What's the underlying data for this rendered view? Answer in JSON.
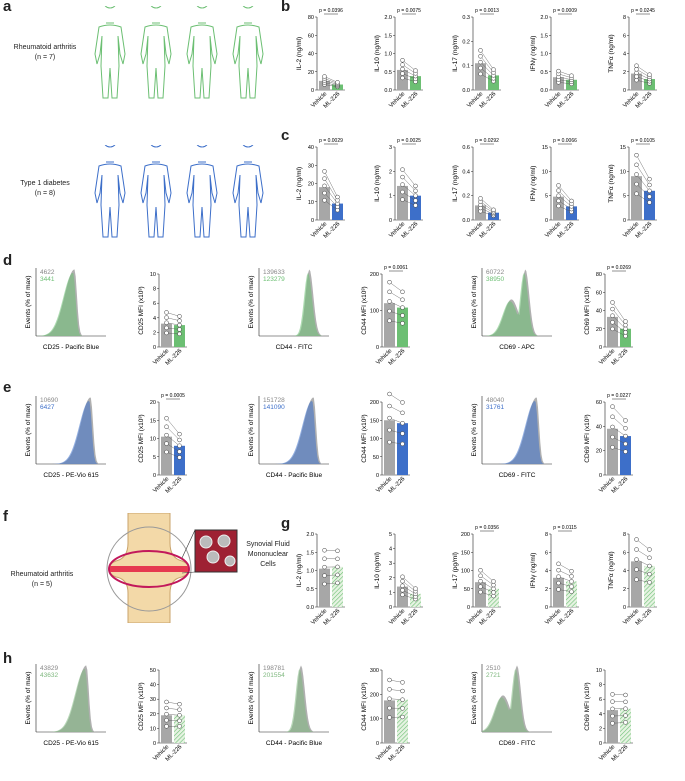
{
  "panel_letters": {
    "a": "a",
    "b": "b",
    "c": "c",
    "d": "d",
    "e": "e",
    "f": "f",
    "g": "g",
    "h": "h"
  },
  "cohorts": {
    "ra": {
      "line1": "Rheumatoid arthritis",
      "line2": "(n = 7)"
    },
    "t1d": {
      "line1": "Type 1 diabetes",
      "line2": "(n = 8)"
    },
    "ra5": {
      "line1": "Rheumatoid arthritis",
      "line2": "(n = 5)"
    }
  },
  "synovial_label": {
    "line1": "Synovial Fluid",
    "line2": "Mononuclear",
    "line3": "Cells"
  },
  "axis_labels": {
    "events": "Events (% of max)",
    "vehicle": "Vehicle",
    "ml226": "ML-226"
  },
  "colors": {
    "green": "#6cbf73",
    "blue": "#3d6fc9",
    "grey": "#a7a7a7",
    "hatch_green": "#b9e0b4"
  },
  "chart_data": {
    "b": [
      {
        "type": "bar",
        "ylabel": "IL-2 (ng/ml)",
        "ticks": [
          "0",
          "20",
          "40",
          "60",
          "80"
        ],
        "ylim": [
          0,
          80
        ],
        "p": "p = 0.0396",
        "values": [
          10,
          6
        ]
      },
      {
        "type": "bar",
        "ylabel": "IL-10 (ng/ml)",
        "ticks": [
          "0.0",
          "0.5",
          "1.0",
          "1.5",
          "2.0"
        ],
        "ylim": [
          0,
          2
        ],
        "p": "p = 0.0075",
        "values": [
          0.55,
          0.38
        ]
      },
      {
        "type": "bar",
        "ylabel": "IL-17 (ng/ml)",
        "ticks": [
          "0.0",
          "0.1",
          "0.2",
          "0.3"
        ],
        "ylim": [
          0,
          0.3
        ],
        "p": "p = 0.0013",
        "values": [
          0.11,
          0.06
        ]
      },
      {
        "type": "bar",
        "ylabel": "IFNγ (ng/ml)",
        "ticks": [
          "0.0",
          "0.5",
          "1.0",
          "1.5",
          "2.0"
        ],
        "ylim": [
          0,
          2
        ],
        "p": "p = 0.0009",
        "values": [
          0.35,
          0.28
        ]
      },
      {
        "type": "bar",
        "ylabel": "TNFα (ng/ml)",
        "ticks": [
          "0",
          "2",
          "4",
          "6",
          "8"
        ],
        "ylim": [
          0,
          8
        ],
        "p": "p = 0.0245",
        "values": [
          1.8,
          1.2
        ]
      }
    ],
    "c": [
      {
        "type": "bar",
        "ylabel": "IL-2 (ng/ml)",
        "ticks": [
          "0",
          "10",
          "20",
          "30",
          "40"
        ],
        "ylim": [
          0,
          40
        ],
        "p": "p = 0.0029",
        "values": [
          18,
          9
        ]
      },
      {
        "type": "bar",
        "ylabel": "IL-10 (ng/ml)",
        "ticks": [
          "0",
          "1",
          "2",
          "3"
        ],
        "ylim": [
          0,
          3
        ],
        "p": "p = 0.0025",
        "values": [
          1.4,
          1.0
        ]
      },
      {
        "type": "bar",
        "ylabel": "IL-17 (ng/ml)",
        "ticks": [
          "0.0",
          "0.2",
          "0.4",
          "0.6"
        ],
        "ylim": [
          0,
          0.6
        ],
        "p": "p = 0.0292",
        "values": [
          0.12,
          0.06
        ]
      },
      {
        "type": "bar",
        "ylabel": "IFNγ (ng/ml)",
        "ticks": [
          "0",
          "5",
          "10",
          "15"
        ],
        "ylim": [
          0,
          15
        ],
        "p": "p = 0.0066",
        "values": [
          4.8,
          2.8
        ]
      },
      {
        "type": "bar",
        "ylabel": "TNFα (ng/ml)",
        "ticks": [
          "0",
          "5",
          "10",
          "15"
        ],
        "ylim": [
          0,
          15
        ],
        "p": "p = 0.0105",
        "values": [
          9,
          6
        ]
      }
    ],
    "d_hist": [
      {
        "xlabel": "CD25 - Pacific Blue",
        "n1": "4622",
        "n2": "3441"
      },
      {
        "xlabel": "CD44 - FITC",
        "n1": "139633",
        "n2": "123279"
      },
      {
        "xlabel": "CD69 - APC",
        "n1": "60722",
        "n2": "38950"
      }
    ],
    "d_bar": [
      {
        "type": "bar",
        "ylabel": "CD25 MFI (x10³)",
        "ticks": [
          "0",
          "2",
          "4",
          "6",
          "8",
          "10"
        ],
        "ylim": [
          0,
          10
        ],
        "p": "",
        "values": [
          3.2,
          3.0
        ]
      },
      {
        "type": "bar",
        "ylabel": "CD44 MFI (x10³)",
        "ticks": [
          "0",
          "100",
          "200"
        ],
        "ylim": [
          0,
          200
        ],
        "p": "p = 0.0061",
        "values": [
          120,
          108
        ]
      },
      {
        "type": "bar",
        "ylabel": "CD69 MFI (x10³)",
        "ticks": [
          "0",
          "20",
          "40",
          "60",
          "80"
        ],
        "ylim": [
          0,
          80
        ],
        "p": "p = 0.0269",
        "values": [
          33,
          20
        ]
      }
    ],
    "e_hist": [
      {
        "xlabel": "CD25 - PE-Vio 615",
        "n1": "10690",
        "n2": "6427"
      },
      {
        "xlabel": "CD44 - Pacific Blue",
        "n1": "151728",
        "n2": "141090"
      },
      {
        "xlabel": "CD69 - FITC",
        "n1": "48040",
        "n2": "31761"
      }
    ],
    "e_bar": [
      {
        "type": "bar",
        "ylabel": "CD25 MFI (x10³)",
        "ticks": [
          "0",
          "5",
          "10",
          "15",
          "20"
        ],
        "ylim": [
          0,
          20
        ],
        "p": "p = 0.0005",
        "values": [
          10.5,
          8
        ]
      },
      {
        "type": "bar",
        "ylabel": "CD44 MFI (x10³)",
        "ticks": [
          "0",
          "50",
          "100",
          "150",
          "200"
        ],
        "ylim": [
          0,
          200
        ],
        "p": "",
        "values": [
          150,
          142
        ]
      },
      {
        "type": "bar",
        "ylabel": "CD69 MFI (x10³)",
        "ticks": [
          "0",
          "20",
          "40",
          "60"
        ],
        "ylim": [
          0,
          60
        ],
        "p": "p = 0.0227",
        "values": [
          38,
          32
        ]
      }
    ],
    "g": [
      {
        "type": "bar",
        "ylabel": "IL-2 (ng/ml)",
        "ticks": [
          "0.0",
          "0.5",
          "1.0",
          "1.5",
          "2.0"
        ],
        "ylim": [
          0,
          2
        ],
        "p": "",
        "values": [
          1.05,
          1.1
        ]
      },
      {
        "type": "bar",
        "ylabel": "IL-10 (ng/ml)",
        "ticks": [
          "0",
          "1",
          "2",
          "3",
          "4",
          "5"
        ],
        "ylim": [
          0,
          5
        ],
        "p": "",
        "values": [
          1.4,
          0.9
        ]
      },
      {
        "type": "bar",
        "ylabel": "IL-17 (pg/ml)",
        "ticks": [
          "0",
          "50",
          "100",
          "150",
          "200"
        ],
        "ylim": [
          0,
          200
        ],
        "p": "p = 0.0356",
        "values": [
          68,
          50
        ]
      },
      {
        "type": "bar",
        "ylabel": "IFNγ (ng/ml)",
        "ticks": [
          "0",
          "2",
          "4",
          "6",
          "8"
        ],
        "ylim": [
          0,
          8
        ],
        "p": "p = 0.0115",
        "values": [
          3.2,
          2.8
        ]
      },
      {
        "type": "bar",
        "ylabel": "TNFα (ng/ml)",
        "ticks": [
          "0",
          "2",
          "4",
          "6",
          "8"
        ],
        "ylim": [
          0,
          8
        ],
        "p": "",
        "values": [
          5,
          4.5
        ]
      }
    ],
    "h_hist": [
      {
        "xlabel": "CD25 - PE-Vio 615",
        "n1": "43829",
        "n2": "43632"
      },
      {
        "xlabel": "CD44 - Pacific Blue",
        "n1": "198781",
        "n2": "201554"
      },
      {
        "xlabel": "CD69 - FITC",
        "n1": "2510",
        "n2": "2721"
      }
    ],
    "h_bar": [
      {
        "type": "bar",
        "ylabel": "CD25 MFI (x10³)",
        "ticks": [
          "0",
          "10",
          "20",
          "30",
          "40",
          "50"
        ],
        "ylim": [
          0,
          50
        ],
        "p": "",
        "values": [
          19,
          19
        ]
      },
      {
        "type": "bar",
        "ylabel": "CD44 MFI (x10³)",
        "ticks": [
          "0",
          "100",
          "200",
          "300"
        ],
        "ylim": [
          0,
          300
        ],
        "p": "",
        "values": [
          175,
          178
        ]
      },
      {
        "type": "bar",
        "ylabel": "CD69 MFI (x10³)",
        "ticks": [
          "0",
          "2",
          "4",
          "6",
          "8",
          "10"
        ],
        "ylim": [
          0,
          10
        ],
        "p": "",
        "values": [
          4.5,
          4.7
        ]
      }
    ]
  }
}
